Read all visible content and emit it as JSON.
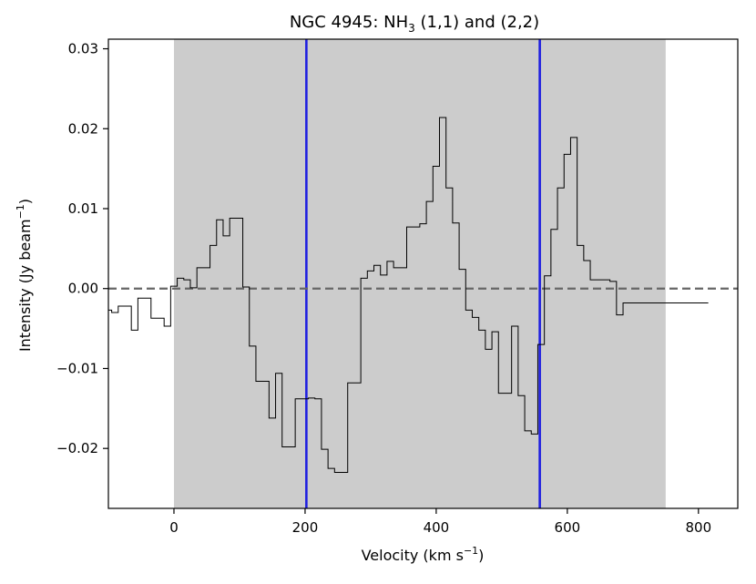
{
  "chart_data": {
    "type": "line",
    "title_main": "NGC 4945: NH",
    "title_sub": "3",
    "title_end": " (1,1) and (2,2)",
    "xlabel_main": "Velocity (km s",
    "xlabel_sup": "−1",
    "xlabel_end": ")",
    "ylabel_main": "Intensity (Jy beam",
    "ylabel_sup": "−1",
    "ylabel_end": ")",
    "xlim": [
      -100,
      860
    ],
    "ylim": [
      -0.0275,
      0.0312
    ],
    "xticks": [
      {
        "value": 0,
        "label": "0"
      },
      {
        "value": 200,
        "label": "200"
      },
      {
        "value": 400,
        "label": "400"
      },
      {
        "value": 600,
        "label": "600"
      },
      {
        "value": 800,
        "label": "800"
      }
    ],
    "yticks": [
      {
        "value": 0.03,
        "label": "0.03"
      },
      {
        "value": 0.02,
        "label": "0.02"
      },
      {
        "value": 0.01,
        "label": "0.01"
      },
      {
        "value": 0.0,
        "label": "0.00"
      },
      {
        "value": -0.01,
        "label": "−0.01"
      },
      {
        "value": -0.02,
        "label": "−0.02"
      }
    ],
    "shaded_region": {
      "x_start": 0,
      "x_end": 750,
      "color": "#cccccc"
    },
    "zero_line": {
      "y": 0.0,
      "color": "#666666",
      "style": "dashed"
    },
    "vertical_lines": [
      {
        "x": 202,
        "color": "#1f1fe0"
      },
      {
        "x": 558,
        "color": "#1f1fe0"
      }
    ],
    "spectrum": {
      "color": "#000000",
      "step_width": 10,
      "x": [
        -100,
        -90,
        -80,
        -70,
        -60,
        -50,
        -40,
        -30,
        -20,
        -10,
        0,
        10,
        20,
        30,
        40,
        50,
        60,
        70,
        80,
        90,
        100,
        110,
        120,
        130,
        140,
        150,
        160,
        170,
        180,
        190,
        200,
        210,
        220,
        230,
        240,
        250,
        260,
        270,
        280,
        290,
        300,
        310,
        320,
        330,
        340,
        350,
        360,
        370,
        380,
        390,
        400,
        410,
        420,
        430,
        440,
        450,
        460,
        470,
        480,
        490,
        500,
        510,
        520,
        530,
        540,
        550,
        560,
        570,
        580,
        590,
        600,
        610,
        620,
        630,
        640,
        650,
        660,
        670,
        680,
        690,
        700,
        710,
        720,
        730,
        740,
        750,
        760,
        770,
        780,
        790,
        800,
        810
      ],
      "y": [
        -0.0027,
        -0.003,
        -0.0022,
        -0.0022,
        -0.0052,
        -0.0012,
        -0.0012,
        -0.0037,
        -0.0037,
        -0.0047,
        0.0003,
        0.0013,
        0.0011,
        0.0001,
        0.0026,
        0.0026,
        0.0054,
        0.0086,
        0.0066,
        0.0088,
        0.0088,
        0.0002,
        -0.0072,
        -0.0116,
        -0.0116,
        -0.0162,
        -0.0106,
        -0.0198,
        -0.0198,
        -0.0138,
        -0.0138,
        -0.0137,
        -0.0138,
        -0.0201,
        -0.0225,
        -0.023,
        -0.023,
        -0.0118,
        -0.0118,
        0.0013,
        0.0022,
        0.0029,
        0.0017,
        0.0034,
        0.0026,
        0.0026,
        0.0077,
        0.0077,
        0.0081,
        0.0109,
        0.0153,
        0.0214,
        0.0126,
        0.0082,
        0.0024,
        -0.0027,
        -0.0036,
        -0.0052,
        -0.0076,
        -0.0054,
        -0.0131,
        -0.0131,
        -0.0047,
        -0.0134,
        -0.0178,
        -0.0182,
        -0.007,
        0.0016,
        0.0074,
        0.0126,
        0.0168,
        0.0189,
        0.0054,
        0.0035,
        0.0011,
        0.0011,
        0.0011,
        0.0009,
        -0.0033,
        -0.0018,
        -0.0018,
        -0.0018,
        -0.0018,
        -0.0018,
        -0.0018,
        -0.0018,
        -0.0018,
        -0.0018,
        -0.0018,
        -0.0018,
        -0.0018,
        -0.0018
      ]
    }
  }
}
